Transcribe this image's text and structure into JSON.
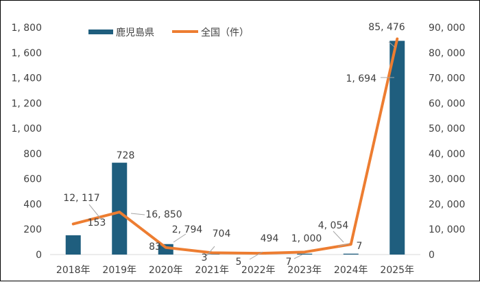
{
  "chart_data": {
    "type": "bar",
    "categories": [
      "2018年",
      "2019年",
      "2020年",
      "2021年",
      "2022年",
      "2023年",
      "2024年",
      "2025年"
    ],
    "series": [
      {
        "name": "鹿児島県",
        "type": "bar",
        "axis": "left",
        "color": "#1f5e7e",
        "values": [
          153,
          728,
          83,
          3,
          5,
          7,
          7,
          1694
        ],
        "labels": [
          "153",
          "728",
          "83",
          "3",
          "5",
          "7",
          "7",
          "1, 694"
        ]
      },
      {
        "name": "全国（件）",
        "type": "line",
        "axis": "right",
        "color": "#ed7d31",
        "values": [
          12117,
          16850,
          2794,
          704,
          494,
          1000,
          4054,
          85476
        ],
        "labels": [
          "12, 117",
          "16, 850",
          "2, 794",
          "704",
          "494",
          "1, 000",
          "4, 054",
          "85, 476"
        ]
      }
    ],
    "ylim_left": [
      0,
      1800
    ],
    "ylim_right": [
      0,
      90000
    ],
    "yticks_left": [
      "0",
      "200",
      "400",
      "600",
      "800",
      "1, 000",
      "1, 200",
      "1, 400",
      "1, 600",
      "1, 800"
    ],
    "yticks_right": [
      "0",
      "10, 000",
      "20, 000",
      "30, 000",
      "40, 000",
      "50, 000",
      "60, 000",
      "70, 000",
      "80, 000",
      "90, 000"
    ],
    "grid": false,
    "legend_position": "top-left"
  }
}
